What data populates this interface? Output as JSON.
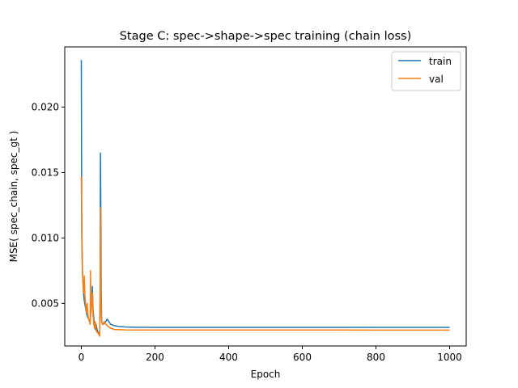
{
  "chart_data": {
    "type": "line",
    "title": "Stage C: spec->shape->spec training (chain loss)",
    "xlabel": "Epoch",
    "ylabel": "MSE( spec_chain, spec_gt )",
    "xlim": [
      -45,
      1045
    ],
    "ylim": [
      0.00175,
      0.0246
    ],
    "xticks": [
      0,
      200,
      400,
      600,
      800,
      1000
    ],
    "yticks": [
      0.005,
      0.01,
      0.015,
      0.02
    ],
    "ytick_labels": [
      "0.005",
      "0.010",
      "0.015",
      "0.020"
    ],
    "grid": false,
    "legend_position": "upper right",
    "series": [
      {
        "name": "train",
        "color": "#1f77b4",
        "x": [
          0,
          1,
          2,
          3,
          4,
          6,
          8,
          10,
          12,
          14,
          16,
          18,
          20,
          22,
          24,
          25,
          26,
          28,
          30,
          32,
          34,
          36,
          38,
          40,
          42,
          44,
          46,
          48,
          50,
          51,
          52,
          53,
          54,
          55,
          56,
          58,
          60,
          62,
          64,
          66,
          68,
          70,
          75,
          80,
          90,
          100,
          120,
          150,
          200,
          300,
          400,
          500,
          600,
          700,
          800,
          900,
          1000
        ],
        "y": [
          0.0236,
          0.0125,
          0.0095,
          0.0078,
          0.0068,
          0.0058,
          0.0052,
          0.0049,
          0.0046,
          0.0042,
          0.0041,
          0.0039,
          0.0038,
          0.0037,
          0.0036,
          0.0041,
          0.0045,
          0.0052,
          0.0063,
          0.0045,
          0.0038,
          0.0032,
          0.003,
          0.0034,
          0.0031,
          0.0029,
          0.0028,
          0.0027,
          0.0027,
          0.006,
          0.0165,
          0.012,
          0.006,
          0.004,
          0.0035,
          0.0034,
          0.0034,
          0.0035,
          0.0035,
          0.0036,
          0.0037,
          0.0038,
          0.0036,
          0.0034,
          0.0033,
          0.00325,
          0.0032,
          0.00318,
          0.00317,
          0.00317,
          0.00317,
          0.00317,
          0.00317,
          0.00317,
          0.00317,
          0.00317,
          0.00317
        ]
      },
      {
        "name": "val",
        "color": "#ff7f0e",
        "x": [
          0,
          1,
          2,
          3,
          4,
          5,
          6,
          8,
          10,
          12,
          14,
          16,
          18,
          20,
          22,
          24,
          25,
          26,
          28,
          30,
          32,
          34,
          36,
          38,
          40,
          42,
          44,
          46,
          48,
          50,
          51,
          52,
          53,
          54,
          55,
          56,
          58,
          60,
          62,
          64,
          66,
          68,
          70,
          75,
          80,
          90,
          100,
          120,
          150,
          200,
          300,
          400,
          500,
          600,
          700,
          800,
          900,
          1000
        ],
        "y": [
          0.0147,
          0.0105,
          0.0085,
          0.0075,
          0.0068,
          0.0062,
          0.0058,
          0.0071,
          0.0055,
          0.0049,
          0.0043,
          0.005,
          0.0041,
          0.0038,
          0.0036,
          0.0034,
          0.0075,
          0.0042,
          0.0048,
          0.0058,
          0.004,
          0.0034,
          0.0031,
          0.0036,
          0.003,
          0.0028,
          0.0028,
          0.0027,
          0.0026,
          0.0025,
          0.0058,
          0.0123,
          0.0062,
          0.0042,
          0.0037,
          0.0035,
          0.0034,
          0.0035,
          0.0036,
          0.0035,
          0.0034,
          0.0034,
          0.0033,
          0.0032,
          0.0031,
          0.003,
          0.003,
          0.00298,
          0.00297,
          0.00297,
          0.00297,
          0.00297,
          0.00297,
          0.00297,
          0.00297,
          0.00296,
          0.00296,
          0.00296
        ]
      }
    ]
  }
}
